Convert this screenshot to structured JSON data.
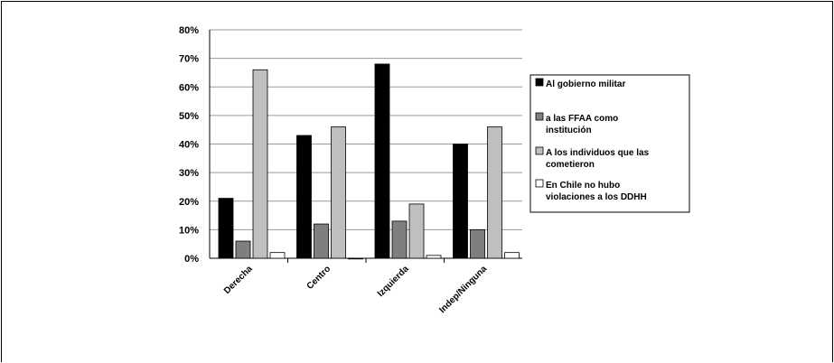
{
  "chart_data": {
    "type": "bar",
    "categories": [
      "Derecha",
      "Centro",
      "Izquierda",
      "Indep/Ninguna"
    ],
    "series": [
      {
        "name": "Al gobierno militar",
        "values": [
          21,
          43,
          68,
          40
        ],
        "color": "#000000"
      },
      {
        "name": "a las FFAA como institución",
        "values": [
          6,
          12,
          13,
          10
        ],
        "color": "#7f7f7f"
      },
      {
        "name": "A los individuos que las cometieron",
        "values": [
          66,
          46,
          19,
          46
        ],
        "color": "#bfbfbf"
      },
      {
        "name": "En Chile no hubo violaciones a los DDHH",
        "values": [
          2,
          0,
          1,
          2
        ],
        "color": "#ffffff"
      }
    ],
    "ylim": [
      0,
      80
    ],
    "yticks": [
      "0%",
      "10%",
      "20%",
      "30%",
      "40%",
      "50%",
      "60%",
      "70%",
      "80%"
    ],
    "grid": true,
    "legend_position": "right",
    "legend_lines": [
      [
        "Al gobierno militar"
      ],
      [
        "a las FFAA como",
        "institución"
      ],
      [
        "A los individuos que las",
        "cometieron"
      ],
      [
        "En Chile no hubo",
        "violaciones a los DDHH"
      ]
    ]
  }
}
